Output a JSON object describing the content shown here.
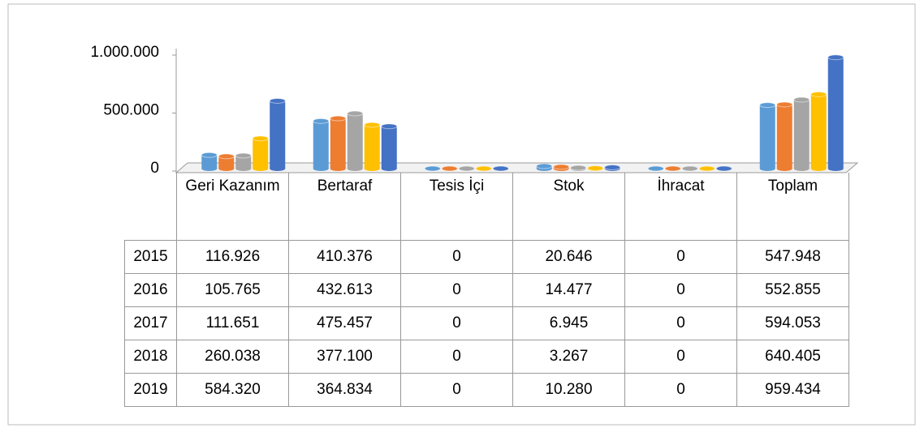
{
  "chart_data": {
    "type": "bar",
    "categories": [
      "Geri Kazanım",
      "Bertaraf",
      "Tesis İçi",
      "Stok",
      "İhracat",
      "Toplam"
    ],
    "series": [
      {
        "name": "2015",
        "color": "#5b9bd5",
        "values": [
          116926,
          410376,
          0,
          20646,
          0,
          547948
        ],
        "value_labels": [
          "116.926",
          "410.376",
          "0",
          "20.646",
          "0",
          "547.948"
        ]
      },
      {
        "name": "2016",
        "color": "#ed7d31",
        "values": [
          105765,
          432613,
          0,
          14477,
          0,
          552855
        ],
        "value_labels": [
          "105.765",
          "432.613",
          "0",
          "14.477",
          "0",
          "552.855"
        ]
      },
      {
        "name": "2017",
        "color": "#a5a5a5",
        "values": [
          111651,
          475457,
          0,
          6945,
          0,
          594053
        ],
        "value_labels": [
          "111.651",
          "475.457",
          "0",
          "6.945",
          "0",
          "594.053"
        ]
      },
      {
        "name": "2018",
        "color": "#ffc000",
        "values": [
          260038,
          377100,
          0,
          3267,
          0,
          640405
        ],
        "value_labels": [
          "260.038",
          "377.100",
          "0",
          "3.267",
          "0",
          "640.405"
        ]
      },
      {
        "name": "2019",
        "color": "#4472c4",
        "values": [
          584320,
          364834,
          0,
          10280,
          0,
          959434
        ],
        "value_labels": [
          "584.320",
          "364.834",
          "0",
          "10.280",
          "0",
          "959.434"
        ]
      }
    ],
    "ylim": [
      0,
      1000000
    ],
    "yticks": [
      0,
      {
        "value": 500000,
        "label": "500.000"
      },
      {
        "value": 1000000,
        "label": "1.000.000"
      }
    ]
  }
}
